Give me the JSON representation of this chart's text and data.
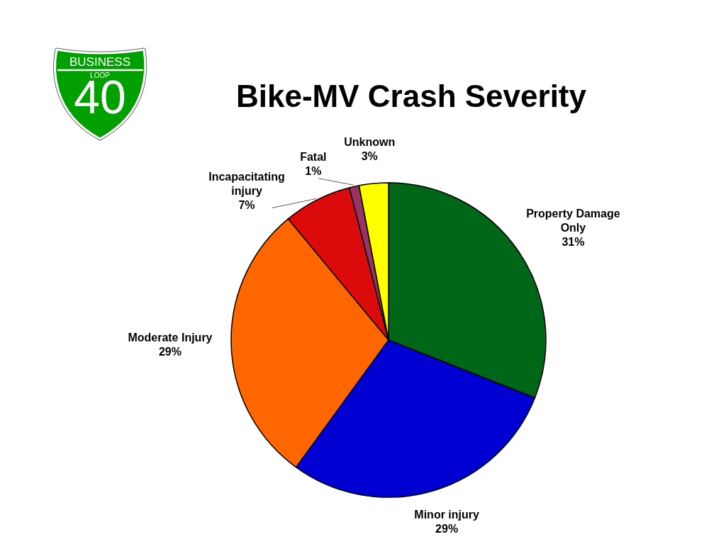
{
  "chart_data": {
    "type": "pie",
    "title": "Bike-MV Crash Severity",
    "categories": [
      "Property Damage Only",
      "Minor injury",
      "Moderate Injury",
      "Incapacitating injury",
      "Fatal",
      "Unknown"
    ],
    "values": [
      31,
      29,
      29,
      7,
      1,
      3
    ],
    "value_labels": [
      "31%",
      "29%",
      "29%",
      "7%",
      "1%",
      "3%"
    ],
    "colors": [
      "#006618",
      "#0000d2",
      "#ff6600",
      "#dc0b0b",
      "#993366",
      "#ffff00"
    ],
    "annotations": [
      "BUSINESS",
      "LOOP",
      "40"
    ]
  }
}
